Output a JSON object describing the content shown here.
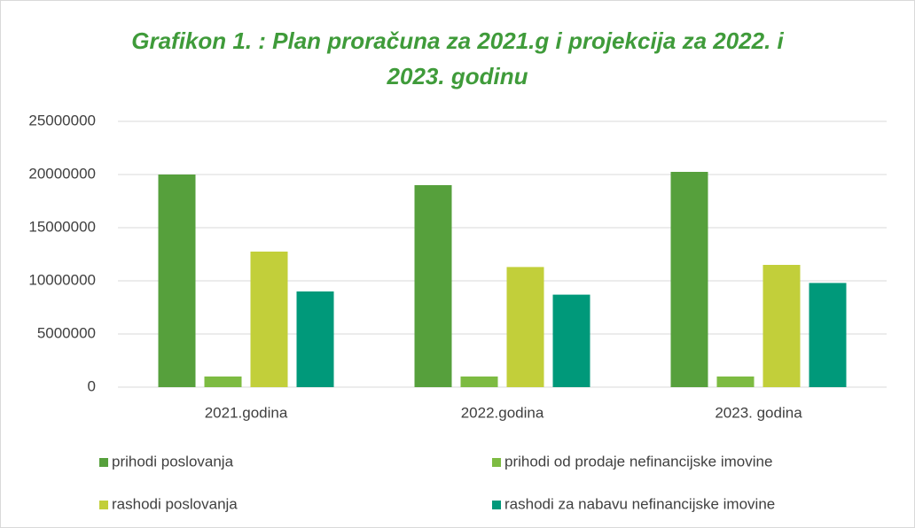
{
  "chart_data": {
    "type": "bar",
    "title": [
      "Grafikon 1. : Plan proračuna za 2021.g i projekcija za 2022.  i",
      "2023. godinu"
    ],
    "categories": [
      "2021.godina",
      "2022.godina",
      "2023. godina"
    ],
    "series": [
      {
        "name": "prihodi poslovanja",
        "color": "#56a03c",
        "values": [
          20000000,
          19000000,
          20250000
        ]
      },
      {
        "name": "prihodi od prodaje nefinancijske imovine",
        "color": "#7dbb42",
        "values": [
          1000000,
          1000000,
          1000000
        ]
      },
      {
        "name": "rashodi poslovanja",
        "color": "#c2cf3a",
        "values": [
          12750000,
          11300000,
          11500000
        ]
      },
      {
        "name": "rashodi za nabavu nefinancijske imovine",
        "color": "#00997a",
        "values": [
          9000000,
          8700000,
          9800000
        ]
      }
    ],
    "ylim": [
      0,
      25000000
    ],
    "yticks": [
      0,
      5000000,
      10000000,
      15000000,
      20000000,
      25000000
    ],
    "grid": true,
    "legend": "bottom"
  }
}
